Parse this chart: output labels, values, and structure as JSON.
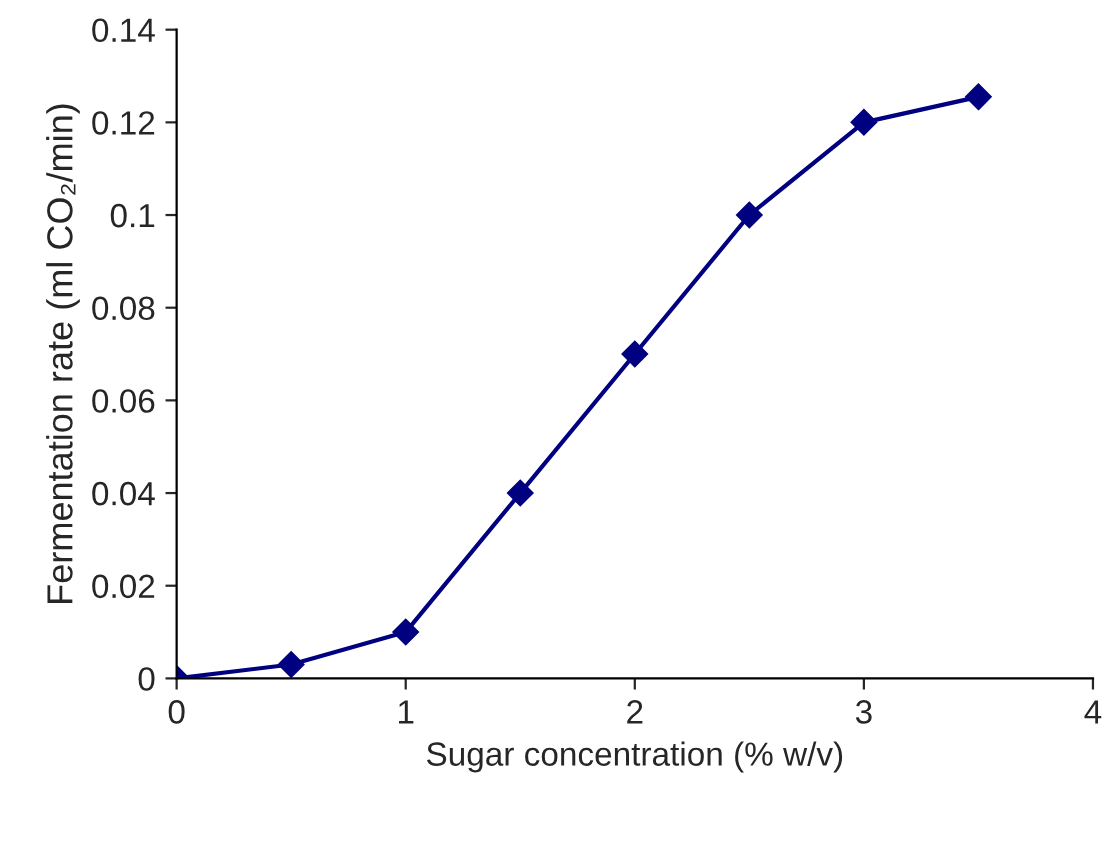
{
  "chart_data": {
    "type": "line",
    "xlabel": "Sugar concentration (% w/v)",
    "ylabel": "Fermentation rate (ml CO₂/min)",
    "x": [
      0,
      0.5,
      1,
      1.5,
      2,
      2.5,
      3,
      3.5
    ],
    "series": [
      {
        "color": "#000080",
        "values": [
          0,
          0.003,
          0.01,
          0.04,
          0.07,
          0.1,
          0.12,
          0.1255
        ]
      }
    ],
    "xlim": [
      0,
      4
    ],
    "xticks": [
      0,
      1,
      2,
      3,
      4
    ],
    "ylim": [
      0,
      0.14
    ],
    "yticks": [
      {
        "value": 0,
        "label": "0"
      },
      {
        "value": 0.02,
        "label": "0.02"
      },
      {
        "value": 0.04,
        "label": "0.04"
      },
      {
        "value": 0.06,
        "label": "0.06"
      },
      {
        "value": 0.08,
        "label": "0.08"
      },
      {
        "value": 0.1,
        "label": "0.1"
      },
      {
        "value": 0.12,
        "label": "0.12"
      },
      {
        "value": 0.14,
        "label": "0.14"
      }
    ],
    "marker": "diamond",
    "line_style": "solid",
    "grid": false,
    "legend": false
  }
}
